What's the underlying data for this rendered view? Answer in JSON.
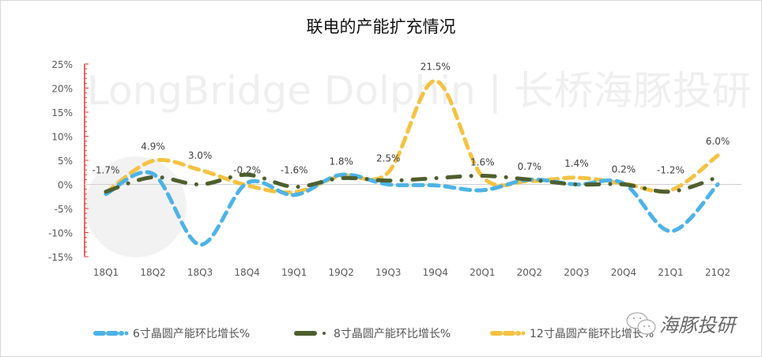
{
  "title": "联电的产能扩充情况",
  "watermark": {
    "text": "LongBridge Dolphin | 长桥海豚投研",
    "brand": "海豚投研"
  },
  "legend": [
    {
      "label": "6寸晶圆产能环比增长%",
      "color": "#4db3e6"
    },
    {
      "label": "8寸晶圆产能环比增长%",
      "color": "#4e5f2e"
    },
    {
      "label": "12寸晶圆产能环比增长%",
      "color": "#f5c242"
    }
  ],
  "chart_data": {
    "type": "line",
    "title": "联电的产能扩充情况",
    "xlabel": "",
    "ylabel": "",
    "ylim": [
      -15,
      25
    ],
    "yticks": [
      "25%",
      "20%",
      "15%",
      "10%",
      "5%",
      "0%",
      "-5%",
      "-10%",
      "-15%"
    ],
    "categories": [
      "18Q1",
      "18Q2",
      "18Q3",
      "18Q4",
      "19Q1",
      "19Q2",
      "19Q3",
      "19Q4",
      "20Q1",
      "20Q2",
      "20Q3",
      "20Q4",
      "21Q1",
      "21Q2"
    ],
    "series": [
      {
        "name": "6寸晶圆产能环比增长%",
        "color": "#4db3e6",
        "values": [
          -2.0,
          2.2,
          -12.5,
          0.3,
          -2.2,
          2.0,
          0.0,
          -0.2,
          -1.2,
          1.0,
          0.0,
          0.2,
          -9.7,
          0.0
        ]
      },
      {
        "name": "8寸晶圆产能环比增长%",
        "color": "#4e5f2e",
        "values": [
          -1.5,
          1.5,
          0.0,
          2.0,
          -0.5,
          1.3,
          0.8,
          1.3,
          1.8,
          1.0,
          0.0,
          0.0,
          -1.5,
          1.5
        ]
      },
      {
        "name": "12寸晶圆产能环比增长%",
        "color": "#f5c242",
        "values": [
          -1.7,
          4.9,
          3.0,
          -0.2,
          -1.6,
          1.8,
          2.5,
          21.5,
          1.6,
          0.7,
          1.4,
          0.2,
          -1.2,
          6.0
        ],
        "data_labels": [
          "-1.7%",
          "4.9%",
          "3.0%",
          "-0.2%",
          "-1.6%",
          "1.8%",
          "2.5%",
          "21.5%",
          "1.6%",
          "0.7%",
          "1.4%",
          "0.2%",
          "-1.2%",
          "6.0%"
        ]
      }
    ],
    "legend_position": "bottom",
    "grid": false
  }
}
